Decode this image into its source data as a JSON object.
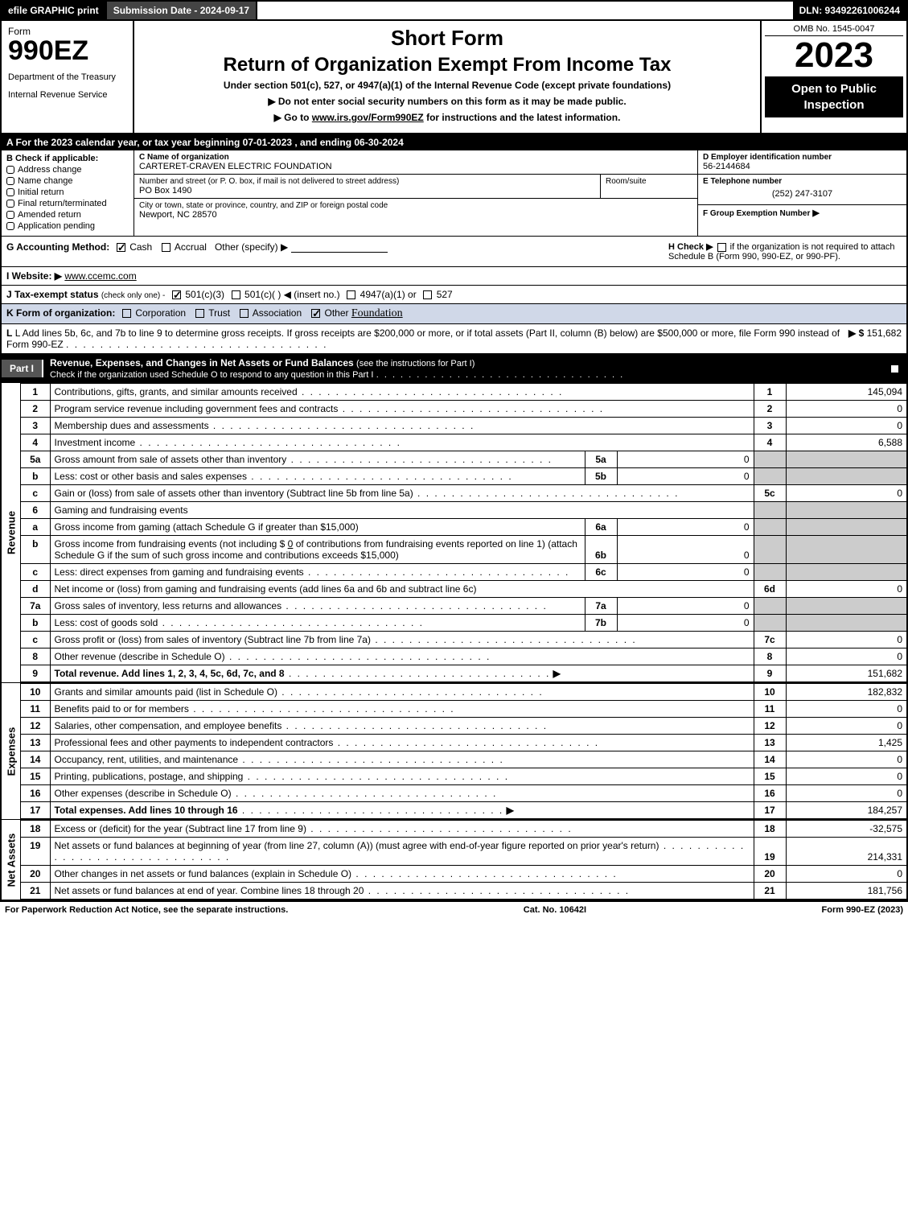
{
  "topbar": {
    "efile": "efile GRAPHIC print",
    "submission": "Submission Date - 2024-09-17",
    "dln": "DLN: 93492261006244"
  },
  "header": {
    "form_label": "Form",
    "form_number": "990EZ",
    "dept1": "Department of the Treasury",
    "dept2": "Internal Revenue Service",
    "short_form": "Short Form",
    "title": "Return of Organization Exempt From Income Tax",
    "subtitle": "Under section 501(c), 527, or 4947(a)(1) of the Internal Revenue Code (except private foundations)",
    "note1": "▶ Do not enter social security numbers on this form as it may be made public.",
    "note2_pre": "▶ Go to ",
    "note2_link": "www.irs.gov/Form990EZ",
    "note2_post": " for instructions and the latest information.",
    "omb": "OMB No. 1545-0047",
    "year": "2023",
    "open": "Open to Public Inspection"
  },
  "line_a": "A  For the 2023 calendar year, or tax year beginning 07-01-2023 , and ending 06-30-2024",
  "box_b": {
    "header": "B  Check if applicable:",
    "items": [
      "Address change",
      "Name change",
      "Initial return",
      "Final return/terminated",
      "Amended return",
      "Application pending"
    ]
  },
  "box_c": {
    "name_lbl": "C Name of organization",
    "name": "CARTERET-CRAVEN ELECTRIC FOUNDATION",
    "street_lbl": "Number and street (or P. O. box, if mail is not delivered to street address)",
    "street": "PO Box 1490",
    "room_lbl": "Room/suite",
    "city_lbl": "City or town, state or province, country, and ZIP or foreign postal code",
    "city": "Newport, NC  28570"
  },
  "box_d": {
    "lbl": "D Employer identification number",
    "val": "56-2144684"
  },
  "box_e": {
    "lbl": "E Telephone number",
    "val": "(252) 247-3107"
  },
  "box_f": {
    "lbl": "F Group Exemption Number",
    "arrow": "▶"
  },
  "row_g": {
    "label": "G Accounting Method:",
    "cash": "Cash",
    "accrual": "Accrual",
    "other": "Other (specify) ▶"
  },
  "row_h": {
    "text1": "H  Check ▶",
    "text2": "if the organization is not required to attach Schedule B (Form 990, 990-EZ, or 990-PF)."
  },
  "row_i": {
    "label": "I Website: ▶",
    "val": "www.ccemc.com"
  },
  "row_j": {
    "label": "J Tax-exempt status",
    "note": "(check only one) -",
    "opt1": "501(c)(3)",
    "opt2": "501(c)(   ) ◀ (insert no.)",
    "opt3": "4947(a)(1) or",
    "opt4": "527"
  },
  "row_k": {
    "label": "K Form of organization:",
    "corp": "Corporation",
    "trust": "Trust",
    "assoc": "Association",
    "other": "Other",
    "other_val": "Foundation"
  },
  "row_l": {
    "text": "L Add lines 5b, 6c, and 7b to line 9 to determine gross receipts. If gross receipts are $200,000 or more, or if total assets (Part II, column (B) below) are $500,000 or more, file Form 990 instead of Form 990-EZ",
    "arrow": "▶ $",
    "val": "151,682"
  },
  "part1": {
    "tag": "Part I",
    "title": "Revenue, Expenses, and Changes in Net Assets or Fund Balances",
    "note": "(see the instructions for Part I)",
    "sub": "Check if the organization used Schedule O to respond to any question in this Part I"
  },
  "revenue_label": "Revenue",
  "expenses_label": "Expenses",
  "netassets_label": "Net Assets",
  "lines": {
    "l1": {
      "no": "1",
      "desc": "Contributions, gifts, grants, and similar amounts received",
      "rno": "1",
      "val": "145,094"
    },
    "l2": {
      "no": "2",
      "desc": "Program service revenue including government fees and contracts",
      "rno": "2",
      "val": "0"
    },
    "l3": {
      "no": "3",
      "desc": "Membership dues and assessments",
      "rno": "3",
      "val": "0"
    },
    "l4": {
      "no": "4",
      "desc": "Investment income",
      "rno": "4",
      "val": "6,588"
    },
    "l5a": {
      "no": "5a",
      "desc": "Gross amount from sale of assets other than inventory",
      "mid": "5a",
      "midval": "0"
    },
    "l5b": {
      "no": "b",
      "desc": "Less: cost or other basis and sales expenses",
      "mid": "5b",
      "midval": "0"
    },
    "l5c": {
      "no": "c",
      "desc": "Gain or (loss) from sale of assets other than inventory (Subtract line 5b from line 5a)",
      "rno": "5c",
      "val": "0"
    },
    "l6": {
      "no": "6",
      "desc": "Gaming and fundraising events"
    },
    "l6a": {
      "no": "a",
      "desc": "Gross income from gaming (attach Schedule G if greater than $15,000)",
      "mid": "6a",
      "midval": "0"
    },
    "l6b": {
      "no": "b",
      "desc": "Gross income from fundraising events (not including $",
      "desc_amt": "0",
      "desc2": "of contributions from fundraising events reported on line 1) (attach Schedule G if the sum of such gross income and contributions exceeds $15,000)",
      "mid": "6b",
      "midval": "0"
    },
    "l6c": {
      "no": "c",
      "desc": "Less: direct expenses from gaming and fundraising events",
      "mid": "6c",
      "midval": "0"
    },
    "l6d": {
      "no": "d",
      "desc": "Net income or (loss) from gaming and fundraising events (add lines 6a and 6b and subtract line 6c)",
      "rno": "6d",
      "val": "0"
    },
    "l7a": {
      "no": "7a",
      "desc": "Gross sales of inventory, less returns and allowances",
      "mid": "7a",
      "midval": "0"
    },
    "l7b": {
      "no": "b",
      "desc": "Less: cost of goods sold",
      "mid": "7b",
      "midval": "0"
    },
    "l7c": {
      "no": "c",
      "desc": "Gross profit or (loss) from sales of inventory (Subtract line 7b from line 7a)",
      "rno": "7c",
      "val": "0"
    },
    "l8": {
      "no": "8",
      "desc": "Other revenue (describe in Schedule O)",
      "rno": "8",
      "val": "0"
    },
    "l9": {
      "no": "9",
      "desc": "Total revenue. Add lines 1, 2, 3, 4, 5c, 6d, 7c, and 8",
      "rno": "9",
      "val": "151,682",
      "bold": true
    },
    "l10": {
      "no": "10",
      "desc": "Grants and similar amounts paid (list in Schedule O)",
      "rno": "10",
      "val": "182,832"
    },
    "l11": {
      "no": "11",
      "desc": "Benefits paid to or for members",
      "rno": "11",
      "val": "0"
    },
    "l12": {
      "no": "12",
      "desc": "Salaries, other compensation, and employee benefits",
      "rno": "12",
      "val": "0"
    },
    "l13": {
      "no": "13",
      "desc": "Professional fees and other payments to independent contractors",
      "rno": "13",
      "val": "1,425"
    },
    "l14": {
      "no": "14",
      "desc": "Occupancy, rent, utilities, and maintenance",
      "rno": "14",
      "val": "0"
    },
    "l15": {
      "no": "15",
      "desc": "Printing, publications, postage, and shipping",
      "rno": "15",
      "val": "0"
    },
    "l16": {
      "no": "16",
      "desc": "Other expenses (describe in Schedule O)",
      "rno": "16",
      "val": "0"
    },
    "l17": {
      "no": "17",
      "desc": "Total expenses. Add lines 10 through 16",
      "rno": "17",
      "val": "184,257",
      "bold": true
    },
    "l18": {
      "no": "18",
      "desc": "Excess or (deficit) for the year (Subtract line 17 from line 9)",
      "rno": "18",
      "val": "-32,575"
    },
    "l19": {
      "no": "19",
      "desc": "Net assets or fund balances at beginning of year (from line 27, column (A)) (must agree with end-of-year figure reported on prior year's return)",
      "rno": "19",
      "val": "214,331"
    },
    "l20": {
      "no": "20",
      "desc": "Other changes in net assets or fund balances (explain in Schedule O)",
      "rno": "20",
      "val": "0"
    },
    "l21": {
      "no": "21",
      "desc": "Net assets or fund balances at end of year. Combine lines 18 through 20",
      "rno": "21",
      "val": "181,756"
    }
  },
  "footer": {
    "left": "For Paperwork Reduction Act Notice, see the separate instructions.",
    "center": "Cat. No. 10642I",
    "right": "Form 990-EZ (2023)"
  }
}
